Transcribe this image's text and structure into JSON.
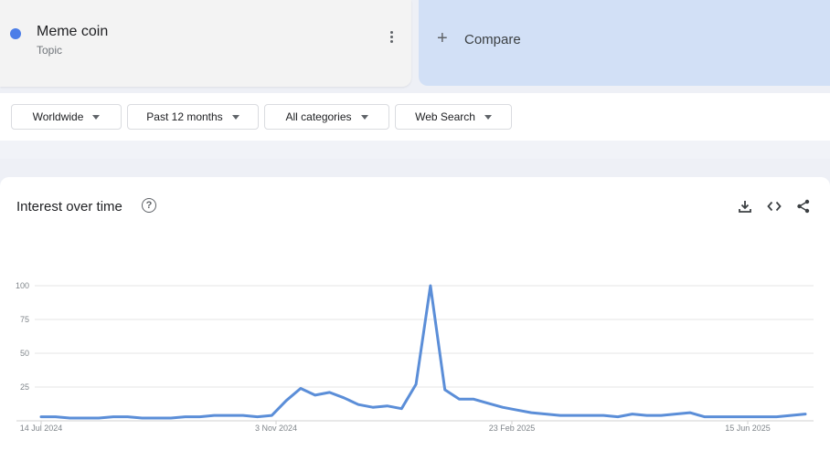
{
  "term": {
    "name": "Meme coin",
    "type": "Topic",
    "color": "#4c7ee8"
  },
  "compare": {
    "label": "Compare"
  },
  "filters": [
    {
      "label": "Worldwide"
    },
    {
      "label": "Past 12 months"
    },
    {
      "label": "All categories"
    },
    {
      "label": "Web Search"
    }
  ],
  "chart_card": {
    "title": "Interest over time"
  },
  "icons": [
    "help-icon",
    "download-icon",
    "embed-icon",
    "share-icon",
    "more-icon",
    "plus-icon",
    "caret-down-icon"
  ],
  "chart_data": {
    "type": "line",
    "ylim": [
      0,
      100
    ],
    "yticks": [
      "100",
      "75",
      "50",
      "25"
    ],
    "ytick_values": [
      100,
      75,
      50,
      25
    ],
    "xticks": [
      "14 Jul 2024",
      "3 Nov 2024",
      "23 Feb 2025",
      "15 Jun 2025"
    ],
    "grid": true,
    "series": [
      {
        "color": "#5b8ed8",
        "values": [
          3,
          3,
          2,
          2,
          2,
          3,
          3,
          2,
          2,
          2,
          3,
          3,
          4,
          4,
          4,
          3,
          4,
          15,
          24,
          19,
          21,
          17,
          12,
          10,
          11,
          9,
          27,
          100,
          23,
          16,
          16,
          13,
          10,
          8,
          6,
          5,
          4,
          4,
          4,
          4,
          3,
          5,
          4,
          4,
          5,
          6,
          3,
          3,
          3,
          3,
          3,
          3,
          4,
          5
        ]
      }
    ]
  }
}
